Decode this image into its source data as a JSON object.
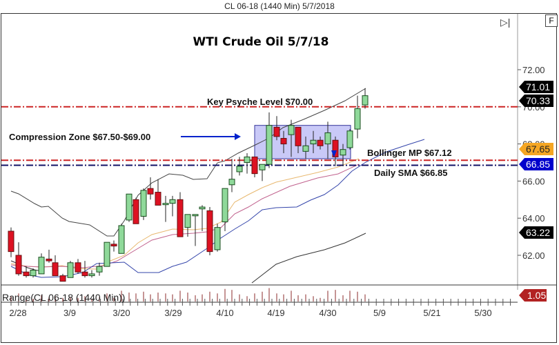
{
  "window": {
    "caption": "CL 06-18 (1440 Min)  5/7/2018"
  },
  "buttons": {
    "f_label": "F",
    "end_icon": "skip-to-end-icon"
  },
  "chart_data": {
    "type": "candlestick",
    "title": "WTI Crude Oil 5/7/18",
    "instrument": "CL 06-18 (1440 Min)",
    "x_tick_labels": [
      "2/28",
      "3/9",
      "3/20",
      "3/29",
      "4/10",
      "4/19",
      "4/30",
      "5/9",
      "5/21",
      "5/30"
    ],
    "y_tick_labels": [
      "72.00",
      "70.00",
      "68.00",
      "66.00",
      "64.00",
      "62.00"
    ],
    "ylim": [
      60.8,
      72.8
    ],
    "price_tags": [
      {
        "value": "71.01",
        "color": "#000000"
      },
      {
        "value": "70.33",
        "color": "#000000"
      },
      {
        "value": "67.65",
        "color": "#f5a623"
      },
      {
        "value": "66.85",
        "color": "#0000cc"
      },
      {
        "value": "63.22",
        "color": "#000000"
      }
    ],
    "annotations": [
      {
        "text": "Key Psyche Level $70.00",
        "level": 70.0
      },
      {
        "text": "Compression Zone $67.50-$69.00",
        "low": 67.5,
        "high": 69.0
      },
      {
        "text": "Bollinger MP $67.12",
        "level": 67.12
      },
      {
        "text": "Daily SMA $66.85",
        "level": 66.85
      }
    ],
    "candles": [
      {
        "x": 16,
        "o": 63.3,
        "h": 63.5,
        "l": 61.9,
        "c": 62.2
      },
      {
        "x": 27,
        "o": 62.0,
        "h": 62.7,
        "l": 60.9,
        "c": 61.0
      },
      {
        "x": 38,
        "o": 61.1,
        "h": 61.4,
        "l": 60.8,
        "c": 60.9
      },
      {
        "x": 48,
        "o": 60.9,
        "h": 61.3,
        "l": 60.8,
        "c": 61.2
      },
      {
        "x": 60,
        "o": 61.0,
        "h": 62.1,
        "l": 61.0,
        "c": 61.9
      },
      {
        "x": 71,
        "o": 61.8,
        "h": 62.3,
        "l": 61.6,
        "c": 61.7
      },
      {
        "x": 80,
        "o": 61.6,
        "h": 62.0,
        "l": 60.9,
        "c": 60.9
      },
      {
        "x": 91,
        "o": 60.9,
        "h": 61.0,
        "l": 60.6,
        "c": 60.6
      },
      {
        "x": 102,
        "o": 60.8,
        "h": 61.7,
        "l": 60.8,
        "c": 61.6
      },
      {
        "x": 113,
        "o": 61.6,
        "h": 61.8,
        "l": 61.0,
        "c": 61.1
      },
      {
        "x": 123,
        "o": 61.1,
        "h": 61.7,
        "l": 60.8,
        "c": 60.9
      },
      {
        "x": 133,
        "o": 60.9,
        "h": 61.2,
        "l": 60.8,
        "c": 61.0
      },
      {
        "x": 144,
        "o": 61.1,
        "h": 61.6,
        "l": 60.9,
        "c": 61.4
      },
      {
        "x": 155,
        "o": 61.4,
        "h": 62.7,
        "l": 61.4,
        "c": 62.7
      },
      {
        "x": 165,
        "o": 62.6,
        "h": 62.8,
        "l": 62.2,
        "c": 62.5
      },
      {
        "x": 176,
        "o": 62.1,
        "h": 63.7,
        "l": 62.1,
        "c": 63.6
      },
      {
        "x": 187,
        "o": 63.9,
        "h": 64.4,
        "l": 63.8,
        "c": 65.3
      },
      {
        "x": 197,
        "o": 65.0,
        "h": 65.1,
        "l": 63.7,
        "c": 63.7
      },
      {
        "x": 208,
        "o": 64.1,
        "h": 65.6,
        "l": 63.9,
        "c": 65.5
      },
      {
        "x": 218,
        "o": 65.6,
        "h": 66.2,
        "l": 65.0,
        "c": 65.3
      },
      {
        "x": 229,
        "o": 65.4,
        "h": 66.1,
        "l": 64.7,
        "c": 64.7
      },
      {
        "x": 240,
        "o": 64.8,
        "h": 65.2,
        "l": 63.8,
        "c": 64.8
      },
      {
        "x": 250,
        "o": 64.8,
        "h": 65.2,
        "l": 64.1,
        "c": 65.0
      },
      {
        "x": 261,
        "o": 65.0,
        "h": 65.4,
        "l": 63.0,
        "c": 63.0
      },
      {
        "x": 272,
        "o": 63.5,
        "h": 64.0,
        "l": 63.0,
        "c": 64.2
      },
      {
        "x": 283,
        "o": 64.2,
        "h": 64.2,
        "l": 62.5,
        "c": 64.2
      },
      {
        "x": 293,
        "o": 64.5,
        "h": 64.7,
        "l": 63.3,
        "c": 64.6
      },
      {
        "x": 304,
        "o": 64.4,
        "h": 64.6,
        "l": 62.0,
        "c": 62.2
      },
      {
        "x": 315,
        "o": 62.3,
        "h": 63.7,
        "l": 62.2,
        "c": 63.5
      },
      {
        "x": 326,
        "o": 63.8,
        "h": 65.1,
        "l": 63.3,
        "c": 65.6
      },
      {
        "x": 336,
        "o": 65.8,
        "h": 67.2,
        "l": 65.4,
        "c": 66.1
      },
      {
        "x": 347,
        "o": 66.5,
        "h": 67.3,
        "l": 66.3,
        "c": 66.8
      },
      {
        "x": 358,
        "o": 67.0,
        "h": 67.5,
        "l": 66.4,
        "c": 67.3
      },
      {
        "x": 369,
        "o": 67.3,
        "h": 67.3,
        "l": 66.2,
        "c": 66.4
      },
      {
        "x": 380,
        "o": 66.6,
        "h": 66.9,
        "l": 66.0,
        "c": 66.9
      },
      {
        "x": 390,
        "o": 66.9,
        "h": 69.7,
        "l": 66.7,
        "c": 69.0
      },
      {
        "x": 401,
        "o": 68.9,
        "h": 69.5,
        "l": 68.2,
        "c": 68.4
      },
      {
        "x": 411,
        "o": 68.3,
        "h": 68.7,
        "l": 67.5,
        "c": 68.0
      },
      {
        "x": 422,
        "o": 68.5,
        "h": 69.3,
        "l": 67.3,
        "c": 69.0
      },
      {
        "x": 432,
        "o": 68.9,
        "h": 68.9,
        "l": 67.5,
        "c": 67.9
      },
      {
        "x": 443,
        "o": 67.6,
        "h": 68.4,
        "l": 67.2,
        "c": 67.9
      },
      {
        "x": 454,
        "o": 68.0,
        "h": 68.7,
        "l": 67.5,
        "c": 68.2
      },
      {
        "x": 464,
        "o": 68.2,
        "h": 68.4,
        "l": 67.7,
        "c": 67.9
      },
      {
        "x": 475,
        "o": 68.0,
        "h": 69.2,
        "l": 67.2,
        "c": 68.6
      },
      {
        "x": 486,
        "o": 68.2,
        "h": 68.4,
        "l": 66.8,
        "c": 67.3
      },
      {
        "x": 497,
        "o": 67.4,
        "h": 68.0,
        "l": 66.8,
        "c": 67.7
      },
      {
        "x": 507,
        "o": 67.8,
        "h": 68.8,
        "l": 67.7,
        "c": 68.7
      },
      {
        "x": 518,
        "o": 68.8,
        "h": 70.6,
        "l": 68.3,
        "c": 69.9
      },
      {
        "x": 529,
        "o": 70.1,
        "h": 71.0,
        "l": 69.9,
        "c": 70.6
      }
    ],
    "range_pane": {
      "label": "Range(CL 06-18 (1440 Min))",
      "last_value": "1.05",
      "tag_color": "#b22222"
    }
  }
}
